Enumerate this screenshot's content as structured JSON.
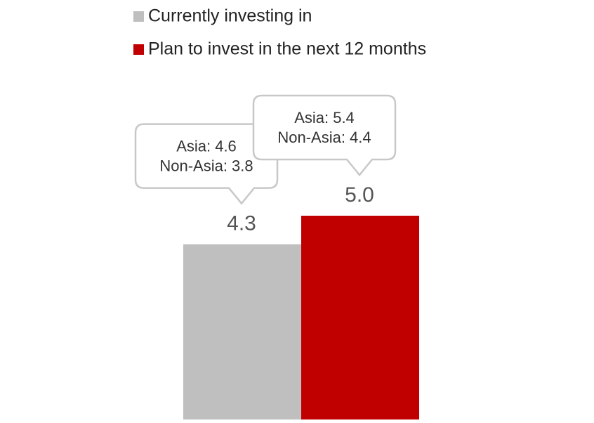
{
  "chart_data": {
    "type": "bar",
    "series": [
      {
        "name": "Currently investing in",
        "color": "#bfbfbf",
        "values": [
          4.3
        ],
        "value_labels": [
          "4.3"
        ],
        "callout": [
          "Asia: 4.6",
          "Non-Asia: 3.8"
        ]
      },
      {
        "name": "Plan to invest in the next 12 months",
        "color": "#c00000",
        "values": [
          5.0
        ],
        "value_labels": [
          "5.0"
        ],
        "callout": [
          "Asia: 5.4",
          "Non-Asia: 4.4"
        ]
      }
    ],
    "legend": "top-left"
  }
}
